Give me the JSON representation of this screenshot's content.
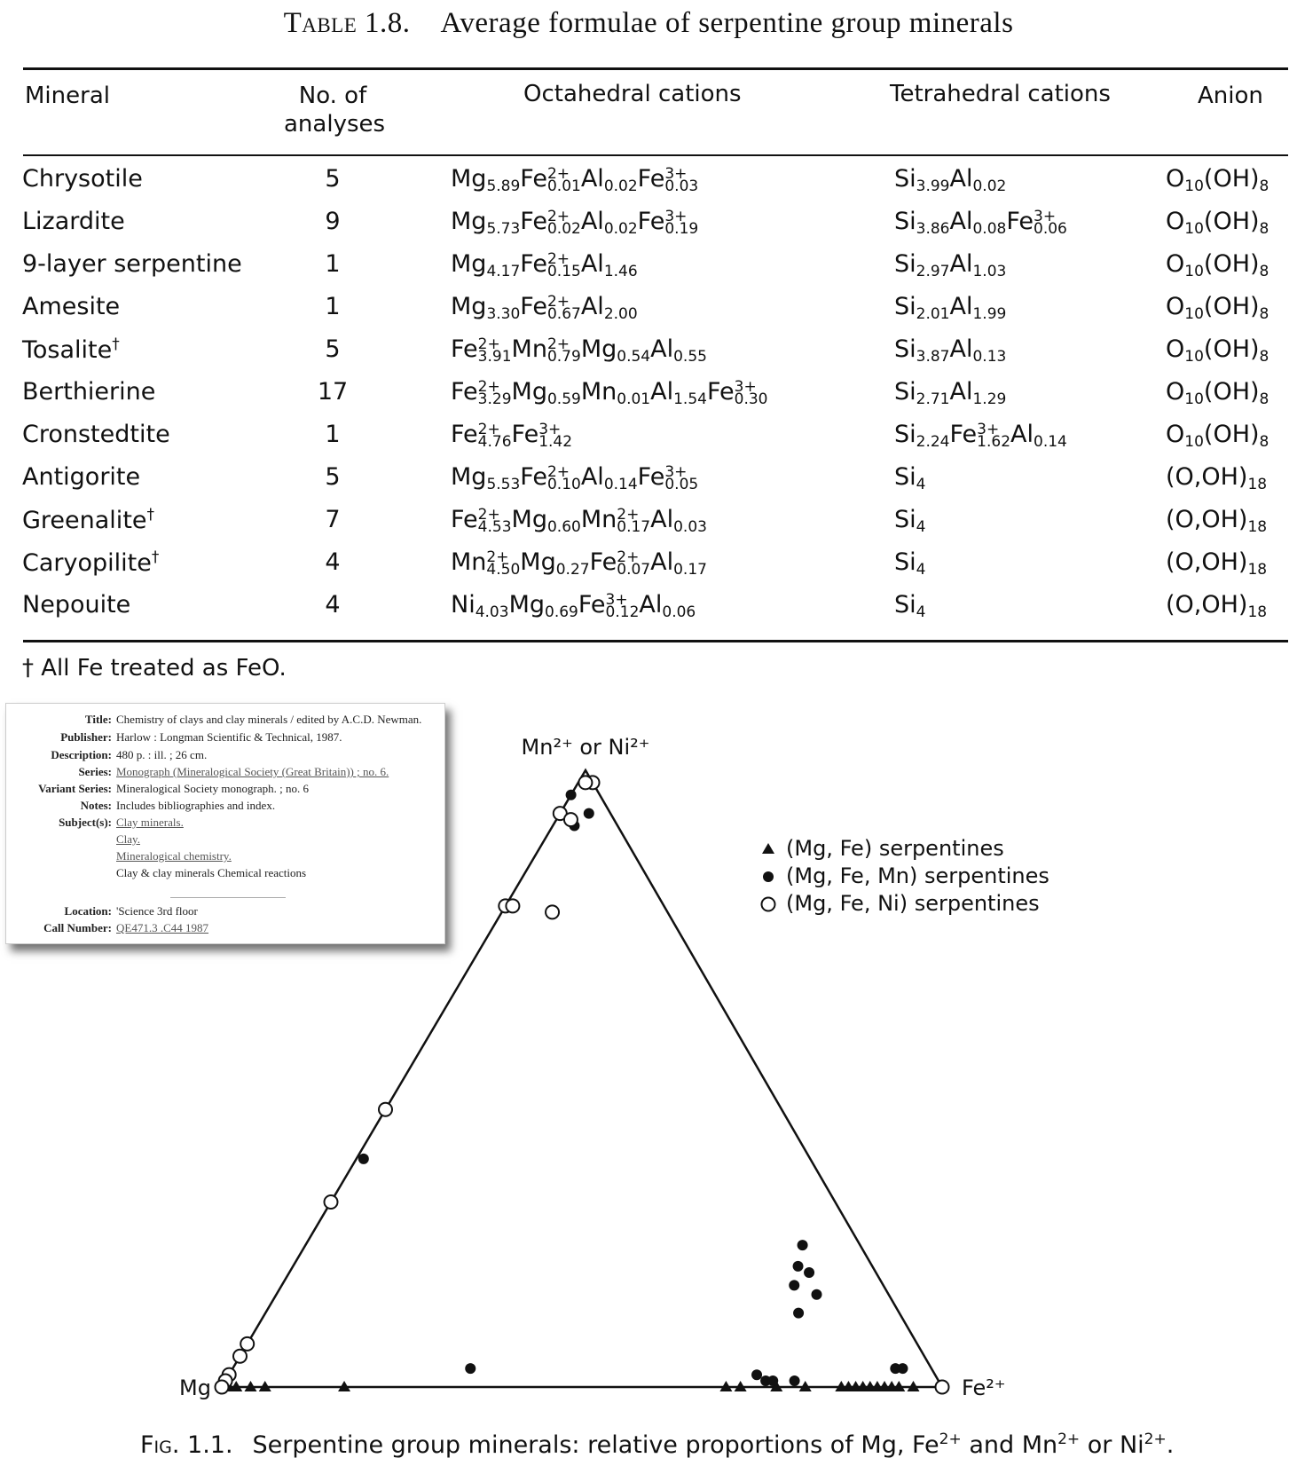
{
  "table": {
    "title_prefix": "Table 1.8.",
    "title": "Average formulae of serpentine group minerals",
    "headers": {
      "mineral": "Mineral",
      "analyses_line1": "No. of",
      "analyses_line2": "analyses",
      "octahedral": "Octahedral cations",
      "tetrahedral": "Tetrahedral cations",
      "anion": "Anion"
    },
    "rows": [
      {
        "mineral": "Chrysotile",
        "dagger": "",
        "analyses": "5",
        "octahedral": [
          [
            "Mg",
            "5.89",
            ""
          ],
          [
            "Fe",
            "0.01",
            "2+"
          ],
          [
            "Al",
            "0.02",
            ""
          ],
          [
            "Fe",
            "0.03",
            "3+"
          ]
        ],
        "tetrahedral": [
          [
            "Si",
            "3.99",
            ""
          ],
          [
            "Al",
            "0.02",
            ""
          ]
        ],
        "anion": [
          [
            "O",
            "10",
            ""
          ],
          [
            "(OH)",
            "8",
            ""
          ]
        ]
      },
      {
        "mineral": "Lizardite",
        "dagger": "",
        "analyses": "9",
        "octahedral": [
          [
            "Mg",
            "5.73",
            ""
          ],
          [
            "Fe",
            "0.02",
            "2+"
          ],
          [
            "Al",
            "0.02",
            ""
          ],
          [
            "Fe",
            "0.19",
            "3+"
          ]
        ],
        "tetrahedral": [
          [
            "Si",
            "3.86",
            ""
          ],
          [
            "Al",
            "0.08",
            ""
          ],
          [
            "Fe",
            "0.06",
            "3+"
          ]
        ],
        "anion": [
          [
            "O",
            "10",
            ""
          ],
          [
            "(OH)",
            "8",
            ""
          ]
        ]
      },
      {
        "mineral": "9-layer serpentine",
        "dagger": "",
        "analyses": "1",
        "octahedral": [
          [
            "Mg",
            "4.17",
            ""
          ],
          [
            "Fe",
            "0.15",
            "2+"
          ],
          [
            "Al",
            "1.46",
            ""
          ]
        ],
        "tetrahedral": [
          [
            "Si",
            "2.97",
            ""
          ],
          [
            "Al",
            "1.03",
            ""
          ]
        ],
        "anion": [
          [
            "O",
            "10",
            ""
          ],
          [
            "(OH)",
            "8",
            ""
          ]
        ]
      },
      {
        "mineral": "Amesite",
        "dagger": "",
        "analyses": "1",
        "octahedral": [
          [
            "Mg",
            "3.30",
            ""
          ],
          [
            "Fe",
            "0.67",
            "2+"
          ],
          [
            "Al",
            "2.00",
            ""
          ]
        ],
        "tetrahedral": [
          [
            "Si",
            "2.01",
            ""
          ],
          [
            "Al",
            "1.99",
            ""
          ]
        ],
        "anion": [
          [
            "O",
            "10",
            ""
          ],
          [
            "(OH)",
            "8",
            ""
          ]
        ]
      },
      {
        "mineral": "Tosalite",
        "dagger": "†",
        "analyses": "5",
        "octahedral": [
          [
            "Fe",
            "3.91",
            "2+"
          ],
          [
            "Mn",
            "0.79",
            "2+"
          ],
          [
            "Mg",
            "0.54",
            ""
          ],
          [
            "Al",
            "0.55",
            ""
          ]
        ],
        "tetrahedral": [
          [
            "Si",
            "3.87",
            ""
          ],
          [
            "Al",
            "0.13",
            ""
          ]
        ],
        "anion": [
          [
            "O",
            "10",
            ""
          ],
          [
            "(OH)",
            "8",
            ""
          ]
        ]
      },
      {
        "mineral": "Berthierine",
        "dagger": "",
        "analyses": "17",
        "octahedral": [
          [
            "Fe",
            "3.29",
            "2+"
          ],
          [
            "Mg",
            "0.59",
            ""
          ],
          [
            "Mn",
            "0.01",
            ""
          ],
          [
            "Al",
            "1.54",
            ""
          ],
          [
            "Fe",
            "0.30",
            "3+"
          ]
        ],
        "tetrahedral": [
          [
            "Si",
            "2.71",
            ""
          ],
          [
            "Al",
            "1.29",
            ""
          ]
        ],
        "anion": [
          [
            "O",
            "10",
            ""
          ],
          [
            "(OH)",
            "8",
            ""
          ]
        ]
      },
      {
        "mineral": "Cronstedtite",
        "dagger": "",
        "analyses": "1",
        "octahedral": [
          [
            "Fe",
            "4.76",
            "2+"
          ],
          [
            "Fe",
            "1.42",
            "3+"
          ]
        ],
        "tetrahedral": [
          [
            "Si",
            "2.24",
            ""
          ],
          [
            "Fe",
            "1.62",
            "3+"
          ],
          [
            "Al",
            "0.14",
            ""
          ]
        ],
        "anion": [
          [
            "O",
            "10",
            ""
          ],
          [
            "(OH)",
            "8",
            ""
          ]
        ]
      },
      {
        "mineral": "Antigorite",
        "dagger": "",
        "analyses": "5",
        "octahedral": [
          [
            "Mg",
            "5.53",
            ""
          ],
          [
            "Fe",
            "0.10",
            "2+"
          ],
          [
            "Al",
            "0.14",
            ""
          ],
          [
            "Fe",
            "0.05",
            "3+"
          ]
        ],
        "tetrahedral": [
          [
            "Si",
            "4",
            ""
          ]
        ],
        "anion": [
          [
            "(O,OH)",
            "18",
            ""
          ]
        ]
      },
      {
        "mineral": "Greenalite",
        "dagger": "†",
        "analyses": "7",
        "octahedral": [
          [
            "Fe",
            "4.53",
            "2+"
          ],
          [
            "Mg",
            "0.60",
            ""
          ],
          [
            "Mn",
            "0.17",
            "2+"
          ],
          [
            "Al",
            "0.03",
            ""
          ]
        ],
        "tetrahedral": [
          [
            "Si",
            "4",
            ""
          ]
        ],
        "anion": [
          [
            "(O,OH)",
            "18",
            ""
          ]
        ]
      },
      {
        "mineral": "Caryopilite",
        "dagger": "†",
        "analyses": "4",
        "octahedral": [
          [
            "Mn",
            "4.50",
            "2+"
          ],
          [
            "Mg",
            "0.27",
            ""
          ],
          [
            "Fe",
            "0.07",
            "2+"
          ],
          [
            "Al",
            "0.17",
            ""
          ]
        ],
        "tetrahedral": [
          [
            "Si",
            "4",
            ""
          ]
        ],
        "anion": [
          [
            "(O,OH)",
            "18",
            ""
          ]
        ]
      },
      {
        "mineral": "Nepouite",
        "dagger": "",
        "analyses": "4",
        "octahedral": [
          [
            "Ni",
            "4.03",
            ""
          ],
          [
            "Mg",
            "0.69",
            ""
          ],
          [
            "Fe",
            "0.12",
            "3+"
          ],
          [
            "Al",
            "0.06",
            ""
          ]
        ],
        "tetrahedral": [
          [
            "Si",
            "4",
            ""
          ]
        ],
        "anion": [
          [
            "(O,OH)",
            "18",
            ""
          ]
        ]
      }
    ],
    "footnote": "† All Fe treated as FeO."
  },
  "catalog_record": {
    "fields": [
      {
        "label": "Title:",
        "value": "Chemistry of clays and clay minerals / edited by A.C.D. Newman.",
        "link": false
      },
      {
        "label": "Publisher:",
        "value": "Harlow : Longman Scientific & Technical, 1987.",
        "link": false
      },
      {
        "label": "Description:",
        "value": "480 p. : ill. ; 26 cm.",
        "link": false
      },
      {
        "label": "Series:",
        "value": "Monograph (Mineralogical Society (Great Britain)) ; no. 6.",
        "link": true
      },
      {
        "label": "Variant Series:",
        "value": "Mineralogical Society monograph. ; no. 6",
        "link": false
      },
      {
        "label": "Notes:",
        "value": "Includes bibliographies and index.",
        "link": false
      },
      {
        "label": "Subject(s):",
        "value": "Clay minerals.",
        "link": true
      },
      {
        "label": "",
        "value": "Clay.",
        "link": true
      },
      {
        "label": "",
        "value": "Mineralogical chemistry.",
        "link": true
      },
      {
        "label": "",
        "value": "Clay & clay minerals Chemical reactions",
        "link": false
      },
      {
        "label": "Location:",
        "value": "'Science 3rd floor",
        "link": false
      },
      {
        "label": "Call Number:",
        "value": "QE471.3 .C44 1987",
        "link": true
      }
    ]
  },
  "chart_data": {
    "type": "scatter",
    "subtype": "ternary",
    "vertices": {
      "top": "Mn²⁺ or Ni²⁺",
      "left": "Mg",
      "right": "Fe²⁺"
    },
    "legend": [
      {
        "marker": "triangle",
        "label": "(Mg, Fe) serpentines"
      },
      {
        "marker": "filled-circle",
        "label": "(Mg, Fe, Mn) serpentines"
      },
      {
        "marker": "open-circle",
        "label": "(Mg, Fe, Ni) serpentines"
      }
    ],
    "legend_position": "top-right",
    "point_units": "fractions of Mg, Fe2+, Mn2+ or Ni2+",
    "series": [
      {
        "name": "(Mg, Fe) serpentines",
        "marker": "triangle",
        "points": [
          {
            "mg": 0.99,
            "fe": 0.01,
            "top": 0.0
          },
          {
            "mg": 0.98,
            "fe": 0.02,
            "top": 0.0
          },
          {
            "mg": 0.96,
            "fe": 0.04,
            "top": 0.0
          },
          {
            "mg": 0.94,
            "fe": 0.06,
            "top": 0.0
          },
          {
            "mg": 0.83,
            "fe": 0.17,
            "top": 0.0
          },
          {
            "mg": 0.3,
            "fe": 0.7,
            "top": 0.0
          },
          {
            "mg": 0.28,
            "fe": 0.72,
            "top": 0.0
          },
          {
            "mg": 0.23,
            "fe": 0.77,
            "top": 0.0
          },
          {
            "mg": 0.19,
            "fe": 0.81,
            "top": 0.0
          },
          {
            "mg": 0.14,
            "fe": 0.86,
            "top": 0.0
          },
          {
            "mg": 0.13,
            "fe": 0.87,
            "top": 0.0
          },
          {
            "mg": 0.12,
            "fe": 0.88,
            "top": 0.0
          },
          {
            "mg": 0.11,
            "fe": 0.89,
            "top": 0.0
          },
          {
            "mg": 0.1,
            "fe": 0.9,
            "top": 0.0
          },
          {
            "mg": 0.09,
            "fe": 0.91,
            "top": 0.0
          },
          {
            "mg": 0.08,
            "fe": 0.92,
            "top": 0.0
          },
          {
            "mg": 0.07,
            "fe": 0.93,
            "top": 0.0
          },
          {
            "mg": 0.06,
            "fe": 0.94,
            "top": 0.0
          },
          {
            "mg": 0.04,
            "fe": 0.96,
            "top": 0.0
          }
        ]
      },
      {
        "name": "(Mg, Fe, Mn) serpentines",
        "marker": "filled-circle",
        "points": [
          {
            "mg": 0.01,
            "fe": 0.01,
            "top": 0.98
          },
          {
            "mg": 0.04,
            "fe": 0.0,
            "top": 0.96
          },
          {
            "mg": 0.03,
            "fe": 0.04,
            "top": 0.93
          },
          {
            "mg": 0.07,
            "fe": 0.0,
            "top": 0.93
          },
          {
            "mg": 0.06,
            "fe": 0.03,
            "top": 0.91
          },
          {
            "mg": 0.62,
            "fe": 0.01,
            "top": 0.37
          },
          {
            "mg": 0.64,
            "fe": 0.33,
            "top": 0.03
          },
          {
            "mg": 0.08,
            "fe": 0.69,
            "top": 0.23
          },
          {
            "mg": 0.1,
            "fe": 0.68,
            "top": 0.19
          },
          {
            "mg": 0.09,
            "fe": 0.7,
            "top": 0.18
          },
          {
            "mg": 0.12,
            "fe": 0.69,
            "top": 0.16
          },
          {
            "mg": 0.1,
            "fe": 0.75,
            "top": 0.15
          },
          {
            "mg": 0.14,
            "fe": 0.74,
            "top": 0.12
          },
          {
            "mg": 0.05,
            "fe": 0.92,
            "top": 0.03
          },
          {
            "mg": 0.04,
            "fe": 0.93,
            "top": 0.03
          },
          {
            "mg": 0.2,
            "fe": 0.79,
            "top": 0.01
          },
          {
            "mg": 0.24,
            "fe": 0.75,
            "top": 0.01
          },
          {
            "mg": 0.23,
            "fe": 0.76,
            "top": 0.01
          },
          {
            "mg": 0.25,
            "fe": 0.74,
            "top": 0.02
          }
        ]
      },
      {
        "name": "(Mg, Fe, Ni) serpentines",
        "marker": "open-circle",
        "points": [
          {
            "mg": 0.0,
            "fe": 0.02,
            "top": 0.98
          },
          {
            "mg": 0.01,
            "fe": 0.01,
            "top": 0.98
          },
          {
            "mg": 0.07,
            "fe": 0.0,
            "top": 0.93
          },
          {
            "mg": 0.06,
            "fe": 0.02,
            "top": 0.92
          },
          {
            "mg": 0.22,
            "fe": 0.0,
            "top": 0.78
          },
          {
            "mg": 0.21,
            "fe": 0.01,
            "top": 0.78
          },
          {
            "mg": 0.16,
            "fe": 0.07,
            "top": 0.77
          },
          {
            "mg": 0.55,
            "fe": 0.0,
            "top": 0.45
          },
          {
            "mg": 0.7,
            "fe": 0.0,
            "top": 0.3
          },
          {
            "mg": 0.93,
            "fe": 0.0,
            "top": 0.07
          },
          {
            "mg": 0.95,
            "fe": 0.0,
            "top": 0.05
          },
          {
            "mg": 0.98,
            "fe": 0.0,
            "top": 0.02
          },
          {
            "mg": 0.99,
            "fe": 0.0,
            "top": 0.01
          },
          {
            "mg": 1.0,
            "fe": 0.0,
            "top": 0.0
          },
          {
            "mg": 0.0,
            "fe": 1.0,
            "top": 0.0
          }
        ]
      }
    ]
  },
  "caption": {
    "fig_label": "Fig. 1.1.",
    "text_before_fe": "Serpentine group minerals: relative proportions of Mg, Fe",
    "fe_sup": "2+",
    "text_mid": " and Mn",
    "mn_sup": "2+",
    "text_or": " or Ni",
    "ni_sup": "2+",
    "end": "."
  }
}
